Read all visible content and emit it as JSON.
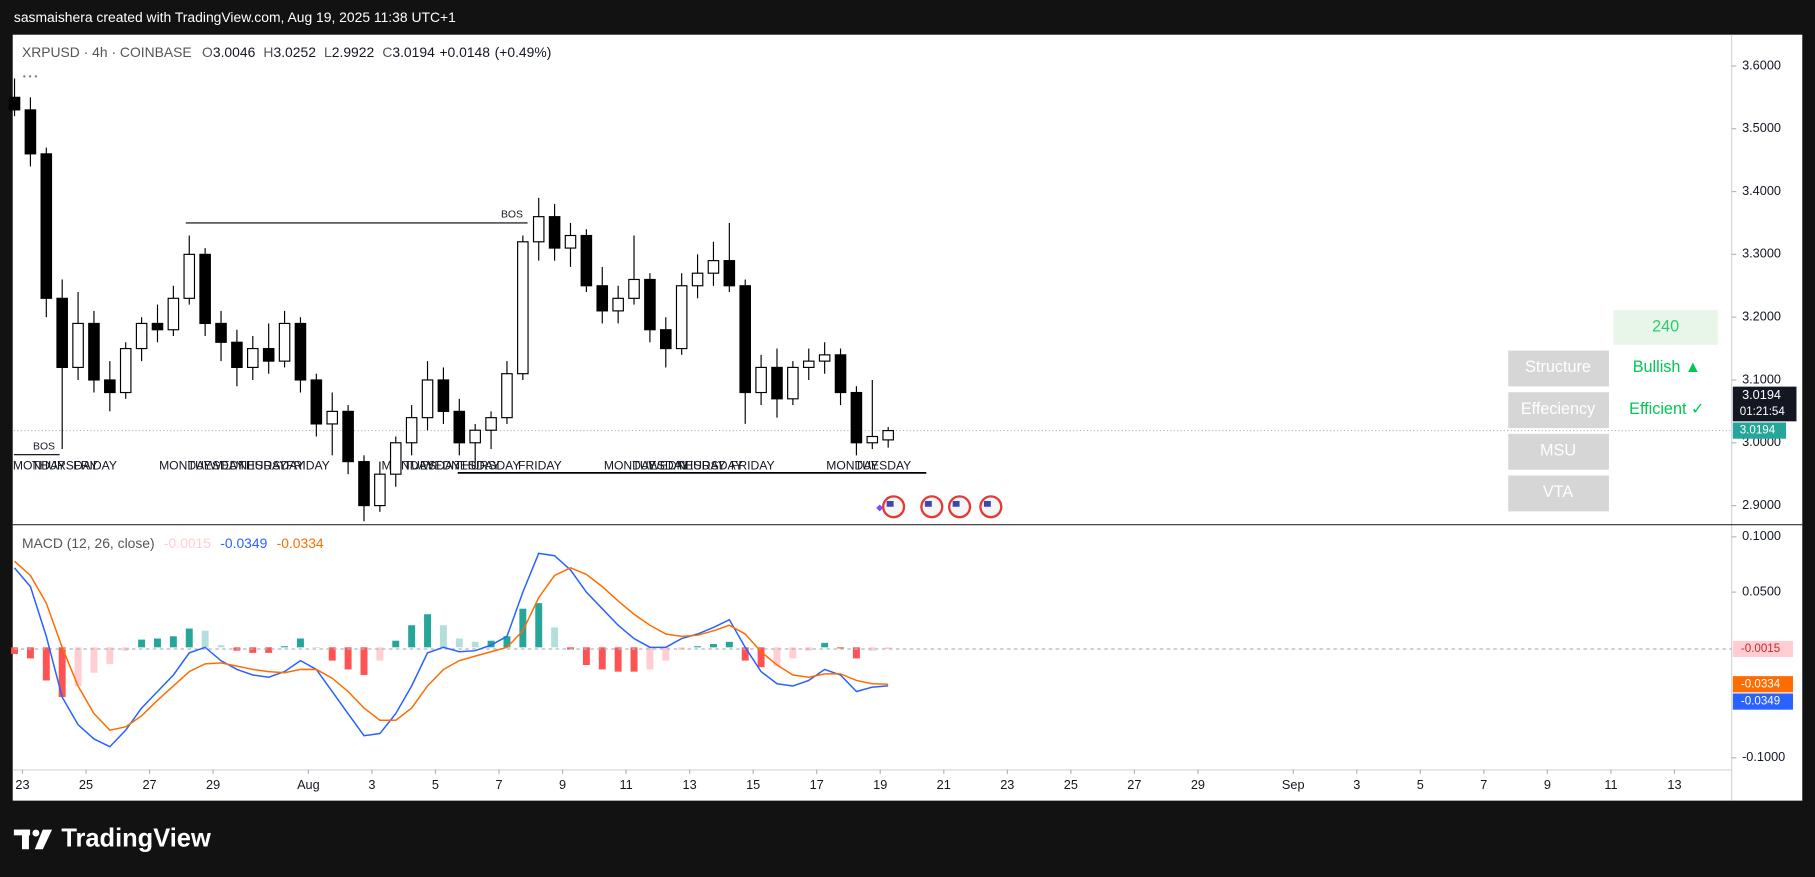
{
  "header": {
    "attribution": "sasmaishera created with TradingView.com, Aug 19, 2025 11:38 UTC+1"
  },
  "chart_data": {
    "type": "candlestick",
    "title": "XRPUSD · 4h · COINBASE",
    "ohlc_prefixes": [
      "O",
      "H",
      "L",
      "C"
    ],
    "change": {
      "value": 0.0148,
      "label": "+0.0148"
    },
    "change_percent": {
      "value": 0.49,
      "label": "(+0.49%)"
    },
    "x": [
      -0.25,
      0.25,
      0.75,
      1.25,
      1.75,
      2.25,
      2.75,
      3.25,
      3.75,
      4.25,
      4.75,
      5.25,
      5.75,
      6.25,
      6.75,
      7.25,
      7.75,
      8.25,
      8.75,
      9.25,
      9.75,
      10.25,
      10.75,
      11.25,
      11.75,
      12.25,
      12.75,
      13.25,
      13.75,
      14.25,
      14.75,
      15.25,
      15.75,
      16.25,
      16.75,
      17.25,
      17.75,
      18.25,
      18.75,
      19.25,
      19.75,
      20.25,
      20.75,
      21.25,
      21.75,
      22.25,
      22.75,
      23.25,
      23.75,
      24.25,
      24.75,
      25.25,
      25.75,
      26.25,
      26.75,
      27.25
    ],
    "open": [
      3.55,
      3.53,
      3.46,
      3.23,
      3.12,
      3.19,
      3.1,
      3.08,
      3.15,
      3.19,
      3.18,
      3.23,
      3.3,
      3.19,
      3.16,
      3.12,
      3.15,
      3.13,
      3.19,
      3.1,
      3.03,
      3.05,
      2.97,
      2.9,
      2.95,
      3.0,
      3.04,
      3.1,
      3.05,
      3.0,
      3.02,
      3.04,
      3.11,
      3.32,
      3.36,
      3.31,
      3.33,
      3.25,
      3.21,
      3.23,
      3.26,
      3.18,
      3.15,
      3.25,
      3.27,
      3.29,
      3.25,
      3.08,
      3.12,
      3.07,
      3.12,
      3.13,
      3.14,
      3.08,
      3.0,
      3.0046
    ],
    "high": [
      3.58,
      3.55,
      3.47,
      3.26,
      3.24,
      3.21,
      3.13,
      3.16,
      3.2,
      3.22,
      3.25,
      3.33,
      3.31,
      3.21,
      3.18,
      3.17,
      3.19,
      3.21,
      3.2,
      3.11,
      3.08,
      3.06,
      2.98,
      2.97,
      3.01,
      3.06,
      3.13,
      3.12,
      3.07,
      3.03,
      3.05,
      3.13,
      3.33,
      3.39,
      3.38,
      3.35,
      3.34,
      3.28,
      3.25,
      3.33,
      3.27,
      3.2,
      3.27,
      3.3,
      3.32,
      3.35,
      3.26,
      3.14,
      3.15,
      3.13,
      3.15,
      3.16,
      3.15,
      3.09,
      3.1,
      3.0252
    ],
    "low": [
      3.52,
      3.44,
      3.2,
      2.99,
      3.1,
      3.08,
      3.05,
      3.07,
      3.13,
      3.16,
      3.17,
      3.22,
      3.17,
      3.13,
      3.09,
      3.1,
      3.11,
      3.12,
      3.08,
      3.01,
      2.98,
      2.95,
      2.875,
      2.89,
      2.93,
      2.98,
      3.02,
      3.03,
      2.98,
      2.96,
      2.99,
      3.03,
      3.1,
      3.29,
      3.29,
      3.28,
      3.24,
      3.19,
      3.19,
      3.22,
      3.16,
      3.12,
      3.14,
      3.23,
      3.25,
      3.24,
      3.03,
      3.06,
      3.04,
      3.06,
      3.1,
      3.11,
      3.06,
      2.98,
      2.99,
      2.9922
    ],
    "close": [
      3.53,
      3.46,
      3.23,
      3.12,
      3.19,
      3.1,
      3.08,
      3.15,
      3.19,
      3.18,
      3.23,
      3.3,
      3.19,
      3.16,
      3.12,
      3.15,
      3.13,
      3.19,
      3.1,
      3.03,
      3.05,
      2.97,
      2.9,
      2.95,
      3.0,
      3.04,
      3.1,
      3.05,
      3.0,
      3.02,
      3.04,
      3.11,
      3.32,
      3.36,
      3.31,
      3.33,
      3.25,
      3.21,
      3.23,
      3.26,
      3.18,
      3.15,
      3.25,
      3.27,
      3.29,
      3.25,
      3.08,
      3.12,
      3.07,
      3.12,
      3.13,
      3.14,
      3.08,
      3.0,
      3.01,
      3.0194
    ],
    "up_color": "#ffffff",
    "down_color": "#000000",
    "wick_color": "#000000",
    "xlim": [
      -0.27,
      53.8
    ],
    "xticks": [
      {
        "value": 0,
        "label": "23"
      },
      {
        "value": 2,
        "label": "25"
      },
      {
        "value": 4,
        "label": "27"
      },
      {
        "value": 6,
        "label": "29"
      },
      {
        "value": 9,
        "label": "Aug"
      },
      {
        "value": 11,
        "label": "3"
      },
      {
        "value": 13,
        "label": "5"
      },
      {
        "value": 15,
        "label": "7"
      },
      {
        "value": 17,
        "label": "9"
      },
      {
        "value": 19,
        "label": "11"
      },
      {
        "value": 21,
        "label": "13"
      },
      {
        "value": 23,
        "label": "15"
      },
      {
        "value": 25,
        "label": "17"
      },
      {
        "value": 27,
        "label": "19"
      },
      {
        "value": 29,
        "label": "21"
      },
      {
        "value": 31,
        "label": "23"
      },
      {
        "value": 33,
        "label": "25"
      },
      {
        "value": 35,
        "label": "27"
      },
      {
        "value": 37,
        "label": "29"
      },
      {
        "value": 40,
        "label": "Sep"
      },
      {
        "value": 42,
        "label": "3"
      },
      {
        "value": 44,
        "label": "5"
      },
      {
        "value": 46,
        "label": "7"
      },
      {
        "value": 48,
        "label": "9"
      },
      {
        "value": 50,
        "label": "11"
      },
      {
        "value": 52,
        "label": "13"
      }
    ],
    "ylim": [
      2.8705,
      3.6497
    ],
    "yticks": [
      {
        "value": 3.6,
        "label": "3.6000"
      },
      {
        "value": 3.5,
        "label": "3.5000"
      },
      {
        "value": 3.4,
        "label": "3.4000"
      },
      {
        "value": 3.3,
        "label": "3.3000"
      },
      {
        "value": 3.2,
        "label": "3.2000"
      },
      {
        "value": 3.1,
        "label": "3.1000"
      },
      {
        "value": 3.0,
        "label": "3.0000"
      },
      {
        "value": 2.9,
        "label": "2.9000"
      }
    ],
    "grid": false,
    "countdown": "01:21:54",
    "last_price_color": "#26a69a",
    "levels": [
      {
        "label": "BOS",
        "price": 3.35,
        "x": [
          5.14,
          15.9
        ]
      },
      {
        "label": "BOS",
        "price": 2.981,
        "x": [
          -0.27,
          1.17
        ]
      }
    ],
    "range_line": {
      "price": 2.952,
      "x": [
        13.7,
        28.45
      ]
    },
    "session_labels": [
      {
        "label": "MONDAY",
        "x": -0.3
      },
      {
        "label": "THURSDAY",
        "x": 0.3
      },
      {
        "label": "FRIDAY",
        "x": 1.6
      },
      {
        "label": "MONDAY",
        "x": 4.3
      },
      {
        "label": "TUESDAY",
        "x": 5.2
      },
      {
        "label": "WEDNESDAY",
        "x": 5.9
      },
      {
        "label": "THURSDAY",
        "x": 6.8
      },
      {
        "label": "FRIDAY",
        "x": 8.3
      },
      {
        "label": "MONDAY",
        "x": 11.3
      },
      {
        "label": "TUESDAY",
        "x": 12.0
      },
      {
        "label": "WEDNESDAY",
        "x": 12.6
      },
      {
        "label": "THURSDAY",
        "x": 13.6
      },
      {
        "label": "FRIDAY",
        "x": 15.6
      },
      {
        "label": "MONDAY",
        "x": 18.3
      },
      {
        "label": "TUESDAY",
        "x": 19.2
      },
      {
        "label": "WEDNESDAY",
        "x": 19.7
      },
      {
        "label": "THURSDAY",
        "x": 20.6
      },
      {
        "label": "FRIDAY",
        "x": 22.3
      },
      {
        "label": "MONDAY",
        "x": 25.3
      },
      {
        "label": "TUESDAY",
        "x": 26.2
      }
    ],
    "macd": {
      "type": "macd",
      "title": "MACD (12, 26, close)",
      "ylim": [
        -0.1105,
        0.1105
      ],
      "yticks": [
        {
          "value": 0.1,
          "label": "0.1000"
        },
        {
          "value": 0.05,
          "label": "0.0500"
        },
        {
          "value": -0.1,
          "label": "-0.1000"
        }
      ],
      "series": [
        {
          "kind": "histogram",
          "colors": {
            "up": "#26a69a",
            "up_fading": "#b2dfdb",
            "down": "#ff5252",
            "down_fading": "#ffcdd2"
          },
          "values": [
            -0.006,
            -0.01,
            -0.03,
            -0.045,
            -0.035,
            -0.023,
            -0.015,
            -0.003,
            0.007,
            0.008,
            0.01,
            0.017,
            0.015,
            0.002,
            -0.003,
            -0.005,
            -0.005,
            0.001,
            0.008,
            0.0,
            -0.012,
            -0.02,
            -0.025,
            -0.012,
            0.006,
            0.02,
            0.03,
            0.02,
            0.008,
            0.005,
            0.006,
            0.01,
            0.035,
            0.04,
            0.018,
            -0.002,
            -0.016,
            -0.02,
            -0.022,
            -0.022,
            -0.02,
            -0.012,
            -0.002,
            0.001,
            0.003,
            0.005,
            -0.012,
            -0.018,
            -0.017,
            -0.01,
            -0.003,
            0.004,
            -0.001,
            -0.01,
            -0.003,
            -0.0015
          ]
        },
        {
          "kind": "line",
          "color": "#2962ff",
          "values": [
            0.072,
            0.055,
            0.01,
            -0.045,
            -0.07,
            -0.083,
            -0.09,
            -0.075,
            -0.055,
            -0.04,
            -0.025,
            -0.005,
            0.0,
            -0.012,
            -0.02,
            -0.025,
            -0.027,
            -0.022,
            -0.012,
            -0.02,
            -0.04,
            -0.06,
            -0.08,
            -0.078,
            -0.06,
            -0.035,
            -0.005,
            0.0,
            -0.004,
            -0.003,
            0.002,
            0.01,
            0.05,
            0.085,
            0.083,
            0.07,
            0.05,
            0.035,
            0.02,
            0.008,
            0.0,
            0.0,
            0.008,
            0.012,
            0.018,
            0.025,
            0.0,
            -0.022,
            -0.033,
            -0.035,
            -0.03,
            -0.02,
            -0.025,
            -0.04,
            -0.036,
            -0.0349
          ]
        },
        {
          "kind": "line",
          "color": "#ff6d00",
          "values": [
            0.078,
            0.065,
            0.04,
            0.0,
            -0.035,
            -0.06,
            -0.075,
            -0.072,
            -0.062,
            -0.048,
            -0.035,
            -0.022,
            -0.015,
            -0.014,
            -0.017,
            -0.02,
            -0.022,
            -0.023,
            -0.02,
            -0.02,
            -0.028,
            -0.04,
            -0.055,
            -0.066,
            -0.066,
            -0.055,
            -0.035,
            -0.02,
            -0.012,
            -0.008,
            -0.004,
            0.0,
            0.015,
            0.045,
            0.065,
            0.072,
            0.066,
            0.055,
            0.042,
            0.03,
            0.02,
            0.012,
            0.01,
            0.011,
            0.015,
            0.02,
            0.012,
            -0.004,
            -0.016,
            -0.025,
            -0.027,
            -0.024,
            -0.024,
            -0.03,
            -0.033,
            -0.0334
          ]
        }
      ]
    }
  },
  "indicator_table": {
    "timeframe": "240",
    "rows": [
      {
        "label": "Structure",
        "value": "Bullish ▲"
      },
      {
        "label": "Effeciency",
        "value": "Efficient ✓"
      },
      {
        "label": "MSU"
      },
      {
        "label": "VTA"
      }
    ]
  },
  "footer": {
    "brand": "TradingView"
  }
}
